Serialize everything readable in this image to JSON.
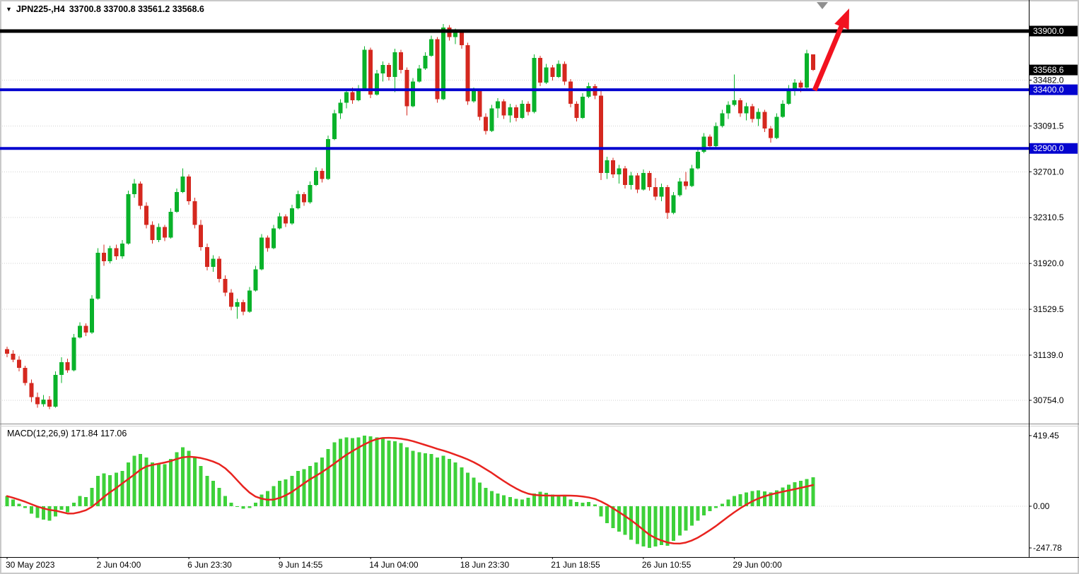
{
  "header": {
    "marker": "▼",
    "symbol": "JPN225-,H4",
    "ohlc": "33700.8 33700.8 33561.2 33568.6"
  },
  "macd_panel": {
    "label": "MACD(12,26,9) 171.84 117.06",
    "ticks": [
      "419.45",
      "0.00",
      "-247.78"
    ]
  },
  "price_axis": {
    "ticks": [
      "33482.0",
      "33091.5",
      "32701.0",
      "32310.5",
      "31920.0",
      "31529.5",
      "31139.0",
      "30754.0"
    ],
    "badges": [
      {
        "label": "33900.0",
        "bg": "#000000"
      },
      {
        "label": "33568.6",
        "bg": "#000000"
      },
      {
        "label": "33400.0",
        "bg": "#0404cf"
      },
      {
        "label": "32900.0",
        "bg": "#0404cf"
      }
    ]
  },
  "time_axis": {
    "labels": [
      {
        "index": 0,
        "text": "30 May 2023"
      },
      {
        "index": 15,
        "text": "2 Jun 04:00"
      },
      {
        "index": 30,
        "text": "6 Jun 23:30"
      },
      {
        "index": 45,
        "text": "9 Jun 14:55"
      },
      {
        "index": 60,
        "text": "14 Jun 04:00"
      },
      {
        "index": 75,
        "text": "18 Jun 23:30"
      },
      {
        "index": 90,
        "text": "21 Jun 18:55"
      },
      {
        "index": 105,
        "text": "26 Jun 10:55"
      },
      {
        "index": 120,
        "text": "29 Jun 00:00"
      }
    ]
  },
  "chart_data": {
    "type": "candlestick",
    "symbol": "JPN225-",
    "timeframe": "H4",
    "indicator": "MACD(12,26,9)",
    "macd_value": 171.84,
    "macd_signal_value": 117.06,
    "last_candle": {
      "open": 33700.8,
      "high": 33700.8,
      "low": 33561.2,
      "close": 33568.6
    },
    "current_price": 33568.6,
    "visible_price_range": [
      30754.0,
      33900.0
    ],
    "macd_range": [
      -247.78,
      419.45
    ],
    "levels": [
      {
        "price": 33900.0,
        "color": "#000000",
        "width": 5
      },
      {
        "price": 33400.0,
        "color": "#0404cf",
        "width": 4
      },
      {
        "price": 32900.0,
        "color": "#0404cf",
        "width": 4
      }
    ],
    "candles": [
      [
        31190,
        31210,
        31120,
        31150
      ],
      [
        31150,
        31180,
        31080,
        31100
      ],
      [
        31100,
        31130,
        31000,
        31030
      ],
      [
        31030,
        31050,
        30880,
        30900
      ],
      [
        30900,
        30930,
        30740,
        30780
      ],
      [
        30780,
        30820,
        30690,
        30720
      ],
      [
        30720,
        30800,
        30700,
        30760
      ],
      [
        30760,
        30790,
        30680,
        30700
      ],
      [
        30700,
        31000,
        30690,
        30970
      ],
      [
        30970,
        31120,
        30900,
        31080
      ],
      [
        31080,
        31110,
        30990,
        31010
      ],
      [
        31010,
        31320,
        31000,
        31290
      ],
      [
        31290,
        31420,
        31280,
        31390
      ],
      [
        31390,
        31410,
        31300,
        31330
      ],
      [
        31330,
        31650,
        31320,
        31620
      ],
      [
        31620,
        32050,
        31610,
        32010
      ],
      [
        32010,
        32080,
        31900,
        31940
      ],
      [
        31940,
        32070,
        31920,
        32050
      ],
      [
        32050,
        32080,
        31950,
        31980
      ],
      [
        31980,
        32120,
        31960,
        32090
      ],
      [
        32090,
        32540,
        32080,
        32510
      ],
      [
        32510,
        32640,
        32480,
        32600
      ],
      [
        32600,
        32620,
        32380,
        32410
      ],
      [
        32410,
        32440,
        32220,
        32250
      ],
      [
        32250,
        32280,
        32090,
        32120
      ],
      [
        32120,
        32260,
        32100,
        32230
      ],
      [
        32230,
        32250,
        32110,
        32140
      ],
      [
        32140,
        32390,
        32130,
        32360
      ],
      [
        32360,
        32560,
        32350,
        32530
      ],
      [
        32530,
        32730,
        32520,
        32660
      ],
      [
        32660,
        32680,
        32420,
        32450
      ],
      [
        32450,
        32480,
        32220,
        32250
      ],
      [
        32250,
        32290,
        32030,
        32060
      ],
      [
        32060,
        32090,
        31860,
        31890
      ],
      [
        31890,
        31990,
        31850,
        31960
      ],
      [
        31960,
        31980,
        31760,
        31790
      ],
      [
        31790,
        31820,
        31640,
        31670
      ],
      [
        31670,
        31700,
        31520,
        31550
      ],
      [
        31550,
        31620,
        31450,
        31590
      ],
      [
        31590,
        31610,
        31480,
        31510
      ],
      [
        31510,
        31720,
        31500,
        31690
      ],
      [
        31690,
        31900,
        31680,
        31870
      ],
      [
        31870,
        32170,
        31860,
        32140
      ],
      [
        32140,
        32160,
        32020,
        32050
      ],
      [
        32050,
        32250,
        32040,
        32220
      ],
      [
        32220,
        32350,
        32210,
        32320
      ],
      [
        32320,
        32340,
        32230,
        32260
      ],
      [
        32260,
        32420,
        32250,
        32390
      ],
      [
        32390,
        32540,
        32380,
        32510
      ],
      [
        32510,
        32530,
        32410,
        32440
      ],
      [
        32440,
        32620,
        32430,
        32590
      ],
      [
        32590,
        32740,
        32580,
        32710
      ],
      [
        32710,
        32730,
        32610,
        32640
      ],
      [
        32640,
        33010,
        32630,
        32980
      ],
      [
        32980,
        33230,
        32970,
        33200
      ],
      [
        33200,
        33320,
        33150,
        33290
      ],
      [
        33290,
        33410,
        33240,
        33380
      ],
      [
        33380,
        33420,
        33280,
        33310
      ],
      [
        33310,
        33440,
        33300,
        33410
      ],
      [
        33410,
        33770,
        33400,
        33740
      ],
      [
        33740,
        33760,
        33330,
        33360
      ],
      [
        33360,
        33570,
        33350,
        33540
      ],
      [
        33540,
        33640,
        33470,
        33610
      ],
      [
        33610,
        33630,
        33480,
        33510
      ],
      [
        33510,
        33750,
        33380,
        33720
      ],
      [
        33720,
        33740,
        33540,
        33570
      ],
      [
        33570,
        33590,
        33180,
        33260
      ],
      [
        33260,
        33500,
        33250,
        33470
      ],
      [
        33470,
        33610,
        33460,
        33580
      ],
      [
        33580,
        33720,
        33570,
        33690
      ],
      [
        33690,
        33860,
        33680,
        33830
      ],
      [
        33830,
        33850,
        33290,
        33320
      ],
      [
        33320,
        33960,
        33310,
        33930
      ],
      [
        33930,
        33950,
        33820,
        33850
      ],
      [
        33850,
        33920,
        33790,
        33890
      ],
      [
        33890,
        33910,
        33750,
        33780
      ],
      [
        33780,
        33800,
        33270,
        33300
      ],
      [
        33300,
        33420,
        33290,
        33390
      ],
      [
        33390,
        33410,
        33140,
        33170
      ],
      [
        33170,
        33200,
        33020,
        33050
      ],
      [
        33050,
        33270,
        33040,
        33240
      ],
      [
        33240,
        33330,
        33160,
        33300
      ],
      [
        33300,
        33320,
        33150,
        33180
      ],
      [
        33180,
        33280,
        33120,
        33250
      ],
      [
        33250,
        33270,
        33130,
        33160
      ],
      [
        33160,
        33310,
        33150,
        33280
      ],
      [
        33280,
        33300,
        33180,
        33210
      ],
      [
        33210,
        33700,
        33200,
        33670
      ],
      [
        33670,
        33690,
        33430,
        33460
      ],
      [
        33460,
        33620,
        33450,
        33590
      ],
      [
        33590,
        33610,
        33480,
        33510
      ],
      [
        33510,
        33650,
        33500,
        33620
      ],
      [
        33620,
        33640,
        33440,
        33470
      ],
      [
        33470,
        33490,
        33250,
        33280
      ],
      [
        33280,
        33300,
        33130,
        33160
      ],
      [
        33160,
        33370,
        33150,
        33340
      ],
      [
        33340,
        33460,
        33330,
        33430
      ],
      [
        33430,
        33450,
        33320,
        33350
      ],
      [
        33350,
        33390,
        32630,
        32690
      ],
      [
        32690,
        32830,
        32640,
        32800
      ],
      [
        32800,
        32820,
        32650,
        32680
      ],
      [
        32680,
        32760,
        32600,
        32730
      ],
      [
        32730,
        32750,
        32560,
        32590
      ],
      [
        32590,
        32700,
        32550,
        32670
      ],
      [
        32670,
        32690,
        32520,
        32550
      ],
      [
        32550,
        32720,
        32540,
        32690
      ],
      [
        32690,
        32710,
        32540,
        32570
      ],
      [
        32570,
        32650,
        32460,
        32490
      ],
      [
        32490,
        32600,
        32450,
        32570
      ],
      [
        32570,
        32590,
        32300,
        32350
      ],
      [
        32350,
        32530,
        32340,
        32500
      ],
      [
        32500,
        32650,
        32490,
        32620
      ],
      [
        32620,
        32700,
        32550,
        32580
      ],
      [
        32580,
        32760,
        32570,
        32730
      ],
      [
        32730,
        32900,
        32720,
        32870
      ],
      [
        32870,
        33030,
        32860,
        33000
      ],
      [
        33000,
        33020,
        32890,
        32920
      ],
      [
        32920,
        33120,
        32910,
        33090
      ],
      [
        33090,
        33230,
        33080,
        33200
      ],
      [
        33200,
        33300,
        33150,
        33270
      ],
      [
        33270,
        33530,
        33260,
        33310
      ],
      [
        33310,
        33330,
        33170,
        33200
      ],
      [
        33200,
        33290,
        33140,
        33260
      ],
      [
        33260,
        33280,
        33120,
        33150
      ],
      [
        33150,
        33240,
        33090,
        33210
      ],
      [
        33210,
        33230,
        33040,
        33070
      ],
      [
        33070,
        33090,
        32950,
        32990
      ],
      [
        32990,
        33200,
        32980,
        33170
      ],
      [
        33170,
        33310,
        33160,
        33280
      ],
      [
        33280,
        33440,
        33270,
        33410
      ],
      [
        33410,
        33490,
        33350,
        33460
      ],
      [
        33460,
        33480,
        33380,
        33420
      ],
      [
        33420,
        33740,
        33410,
        33710
      ],
      [
        33700.8,
        33700.8,
        33561.2,
        33568.6
      ]
    ],
    "macd": [
      60,
      40,
      15,
      -10,
      -45,
      -70,
      -80,
      -85,
      -60,
      -20,
      -35,
      20,
      60,
      55,
      110,
      180,
      195,
      185,
      200,
      210,
      260,
      300,
      310,
      290,
      260,
      255,
      250,
      280,
      320,
      350,
      330,
      290,
      240,
      180,
      150,
      110,
      60,
      20,
      0,
      -15,
      -10,
      20,
      70,
      90,
      120,
      150,
      160,
      180,
      210,
      220,
      240,
      260,
      290,
      340,
      380,
      400,
      410,
      405,
      410,
      419.45,
      415,
      410,
      400,
      390,
      385,
      375,
      350,
      330,
      320,
      315,
      310,
      290,
      300,
      280,
      260,
      230,
      200,
      170,
      140,
      110,
      90,
      75,
      65,
      55,
      45,
      40,
      50,
      75,
      85,
      80,
      70,
      65,
      60,
      40,
      25,
      20,
      25,
      10,
      -60,
      -100,
      -130,
      -150,
      -170,
      -200,
      -225,
      -240,
      -247.78,
      -240,
      -230,
      -235,
      -205,
      -175,
      -145,
      -115,
      -85,
      -55,
      -30,
      -10,
      15,
      40,
      60,
      72,
      82,
      90,
      95,
      88,
      82,
      95,
      112,
      128,
      142,
      152,
      162,
      171.84
    ],
    "annotations": [
      {
        "type": "arrow",
        "direction": "up-right",
        "color": "#f2121f",
        "note": "bullish projection arrow from 33400 level toward 33900 level"
      }
    ],
    "colors": {
      "bull": "#09b22a",
      "bear": "#d5281f",
      "macd_bar": "#3ed13a",
      "signal": "#e8231f",
      "grid": "#d2d2d2",
      "arrow": "#f2121f",
      "level_blue": "#0404cf",
      "level_black": "#000000"
    }
  }
}
